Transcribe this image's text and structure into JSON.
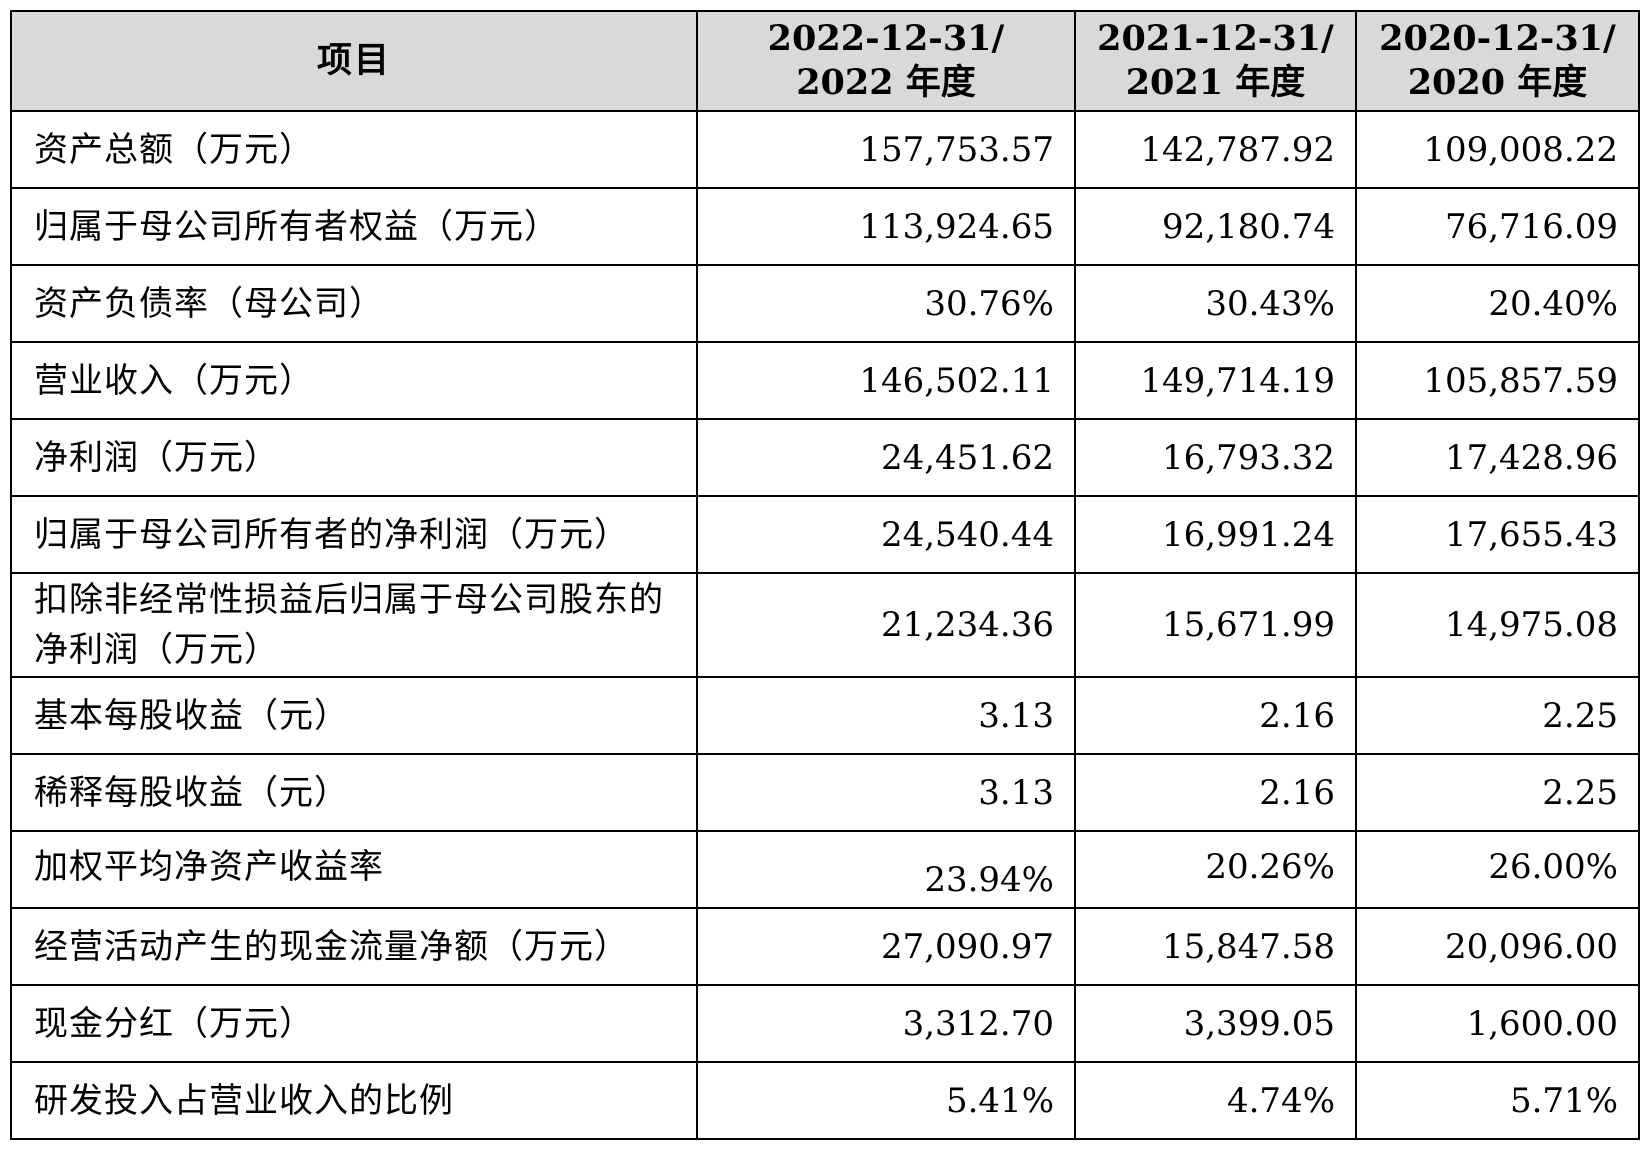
{
  "table": {
    "headers": {
      "item": "项目",
      "periods": [
        {
          "line1": "2022-12-31/",
          "line2": "2022 年度"
        },
        {
          "line1": "2021-12-31/",
          "line2": "2021 年度"
        },
        {
          "line1": "2020-12-31/",
          "line2": "2020 年度"
        }
      ]
    },
    "rows": [
      {
        "label": "资产总额（万元）",
        "values": [
          "157,753.57",
          "142,787.92",
          "109,008.22"
        ]
      },
      {
        "label": "归属于母公司所有者权益（万元）",
        "values": [
          "113,924.65",
          "92,180.74",
          "76,716.09"
        ]
      },
      {
        "label": "资产负债率（母公司）",
        "values": [
          "30.76%",
          "30.43%",
          "20.40%"
        ]
      },
      {
        "label": "营业收入（万元）",
        "values": [
          "146,502.11",
          "149,714.19",
          "105,857.59"
        ]
      },
      {
        "label": "净利润（万元）",
        "values": [
          "24,451.62",
          "16,793.32",
          "17,428.96"
        ]
      },
      {
        "label": "归属于母公司所有者的净利润（万元）",
        "values": [
          "24,540.44",
          "16,991.24",
          "17,655.43"
        ]
      },
      {
        "label": "扣除非经常性损益后归属于母公司股东的净利润（万元）",
        "values": [
          "21,234.36",
          "15,671.99",
          "14,975.08"
        ]
      },
      {
        "label": "基本每股收益（元）",
        "values": [
          "3.13",
          "2.16",
          "2.25"
        ]
      },
      {
        "label": "稀释每股收益（元）",
        "values": [
          "3.13",
          "2.16",
          "2.25"
        ]
      },
      {
        "label": "加权平均净资产收益率",
        "values": [
          "23.94%",
          "20.26%",
          "26.00%"
        ]
      },
      {
        "label": "经营活动产生的现金流量净额（万元）",
        "values": [
          "27,090.97",
          "15,847.58",
          "20,096.00"
        ]
      },
      {
        "label": "现金分红（万元）",
        "values": [
          "3,312.70",
          "3,399.05",
          "1,600.00"
        ]
      },
      {
        "label": "研发投入占营业收入的比例",
        "values": [
          "5.41%",
          "4.74%",
          "5.71%"
        ]
      }
    ]
  }
}
